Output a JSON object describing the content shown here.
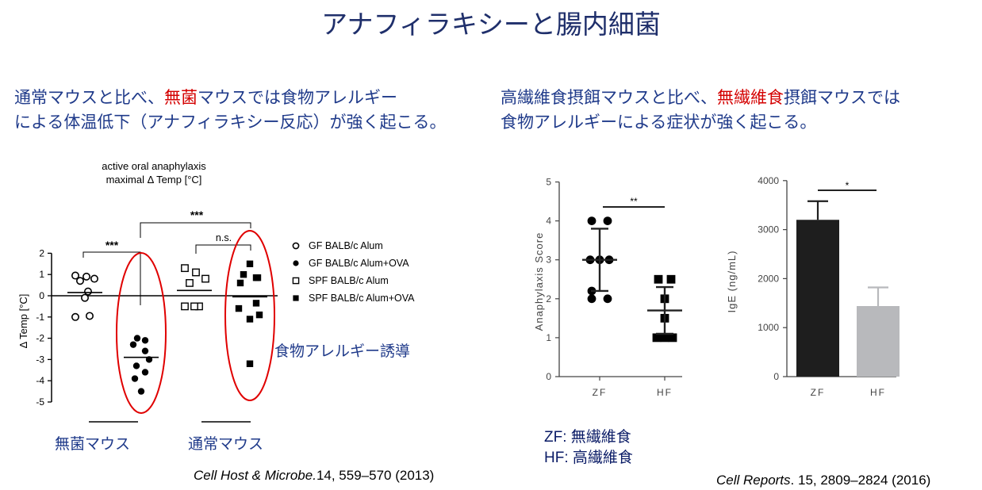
{
  "title": "アナフィラキシーと腸内細菌",
  "left_headline": {
    "line1_pre": "通常マウスと比べ、",
    "line1_red": "無菌",
    "line1_post": "マウスでは食物アレルギー",
    "line2": "による体温低下（アナフィラキシー反応）が強く起こる。"
  },
  "right_headline": {
    "line1_pre": "高繊維食摂餌マウスと比べ、",
    "line1_red": "無繊維食",
    "line1_post": "摂餌マウスでは",
    "line2": "食物アレルギーによる症状が強く起こる。"
  },
  "colors": {
    "title": "#1f2f6b",
    "headline": "#1f3a8a",
    "highlight": "#d40000",
    "ellipse": "#e00000",
    "bar_zf": "#1e1e1e",
    "bar_hf": "#b8b9bc"
  },
  "annotations": {
    "food_allergy_induction": "食物アレルギー誘導",
    "germfree_mice": "無菌マウス",
    "normal_mice": "通常マウス",
    "diet_zf": "ZF: 無繊維食",
    "diet_hf": "HF: 高繊維食"
  },
  "citations": {
    "left_journal": "Cell Host & Microbe.",
    "left_rest": "14, 559–570 (2013)",
    "right_journal": "Cell Reports",
    "right_rest": ". 15, 2809–2824 (2016)"
  },
  "chart_data": [
    {
      "type": "scatter",
      "title": "active oral anaphylaxis\nmaximal Δ Temp [°C]",
      "title_lines": [
        "active oral anaphylaxis",
        "maximal Δ Temp [°C]"
      ],
      "ylabel": "Δ Temp [°C]",
      "ylim": [
        -5,
        2
      ],
      "yticks": [
        "2",
        "1",
        "0",
        "-1",
        "-2",
        "-3",
        "-4",
        "-5"
      ],
      "ytick_values": [
        2,
        1,
        0,
        -1,
        -2,
        -3,
        -4,
        -5
      ],
      "legend": [
        {
          "label": "GF BALB/c Alum",
          "marker": "open-circle"
        },
        {
          "label": "GF BALB/c Alum+OVA",
          "marker": "filled-circle"
        },
        {
          "label": "SPF BALB/c Alum",
          "marker": "open-square"
        },
        {
          "label": "SPF BALB/c Alum+OVA",
          "marker": "filled-square"
        }
      ],
      "legend_position": "right",
      "groups": [
        {
          "name": "GF BALB/c Alum",
          "marker": "open-circle",
          "mean": 0.15,
          "points": [
            0.95,
            0.9,
            0.8,
            0.7,
            0.2,
            -0.1,
            -1.0,
            -0.95
          ]
        },
        {
          "name": "GF BALB/c Alum+OVA",
          "marker": "filled-circle",
          "mean": -2.9,
          "points": [
            -2.0,
            -2.1,
            -2.3,
            -2.6,
            -3.0,
            -3.3,
            -3.6,
            -3.9,
            -4.5
          ]
        },
        {
          "name": "SPF BALB/c Alum",
          "marker": "open-square",
          "mean": 0.25,
          "points": [
            1.3,
            1.1,
            0.8,
            0.6,
            -0.5,
            -0.5,
            -0.5
          ]
        },
        {
          "name": "SPF BALB/c Alum+OVA",
          "marker": "filled-square",
          "mean": -0.05,
          "points": [
            1.5,
            1.0,
            0.85,
            0.85,
            0.6,
            -0.35,
            -0.6,
            -1.1,
            -0.9,
            -3.2
          ]
        }
      ],
      "significance": [
        {
          "groups": [
            0,
            1
          ],
          "label": "***"
        },
        {
          "groups": [
            1,
            3
          ],
          "label": "***"
        },
        {
          "groups": [
            2,
            3
          ],
          "label": "n.s."
        }
      ]
    },
    {
      "type": "scatter",
      "ylabel": "Anaphylaxis Score",
      "ylim": [
        0,
        5
      ],
      "yticks": [
        "0",
        "1",
        "2",
        "3",
        "4",
        "5"
      ],
      "categories": [
        "ZF",
        "HF"
      ],
      "groups": [
        {
          "name": "ZF",
          "marker": "filled-circle",
          "mean": 3.0,
          "sd": 0.8,
          "points": [
            4.0,
            4.0,
            3.0,
            3.0,
            3.0,
            2.2,
            2.0,
            2.0
          ]
        },
        {
          "name": "HF",
          "marker": "filled-square",
          "mean": 1.7,
          "sd": 0.6,
          "points": [
            2.5,
            2.5,
            2.0,
            1.5,
            1.0,
            1.0,
            1.0
          ]
        }
      ],
      "significance": [
        {
          "groups": [
            0,
            1
          ],
          "label": "**"
        }
      ]
    },
    {
      "type": "bar",
      "ylabel": "IgE (ng/mL)",
      "ylim": [
        0,
        4000
      ],
      "yticks": [
        "0",
        "1000",
        "2000",
        "3000",
        "4000"
      ],
      "categories": [
        "ZF",
        "HF"
      ],
      "values": [
        3200,
        1440
      ],
      "errors": [
        380,
        380
      ],
      "significance": [
        {
          "groups": [
            0,
            1
          ],
          "label": "*"
        }
      ]
    }
  ]
}
